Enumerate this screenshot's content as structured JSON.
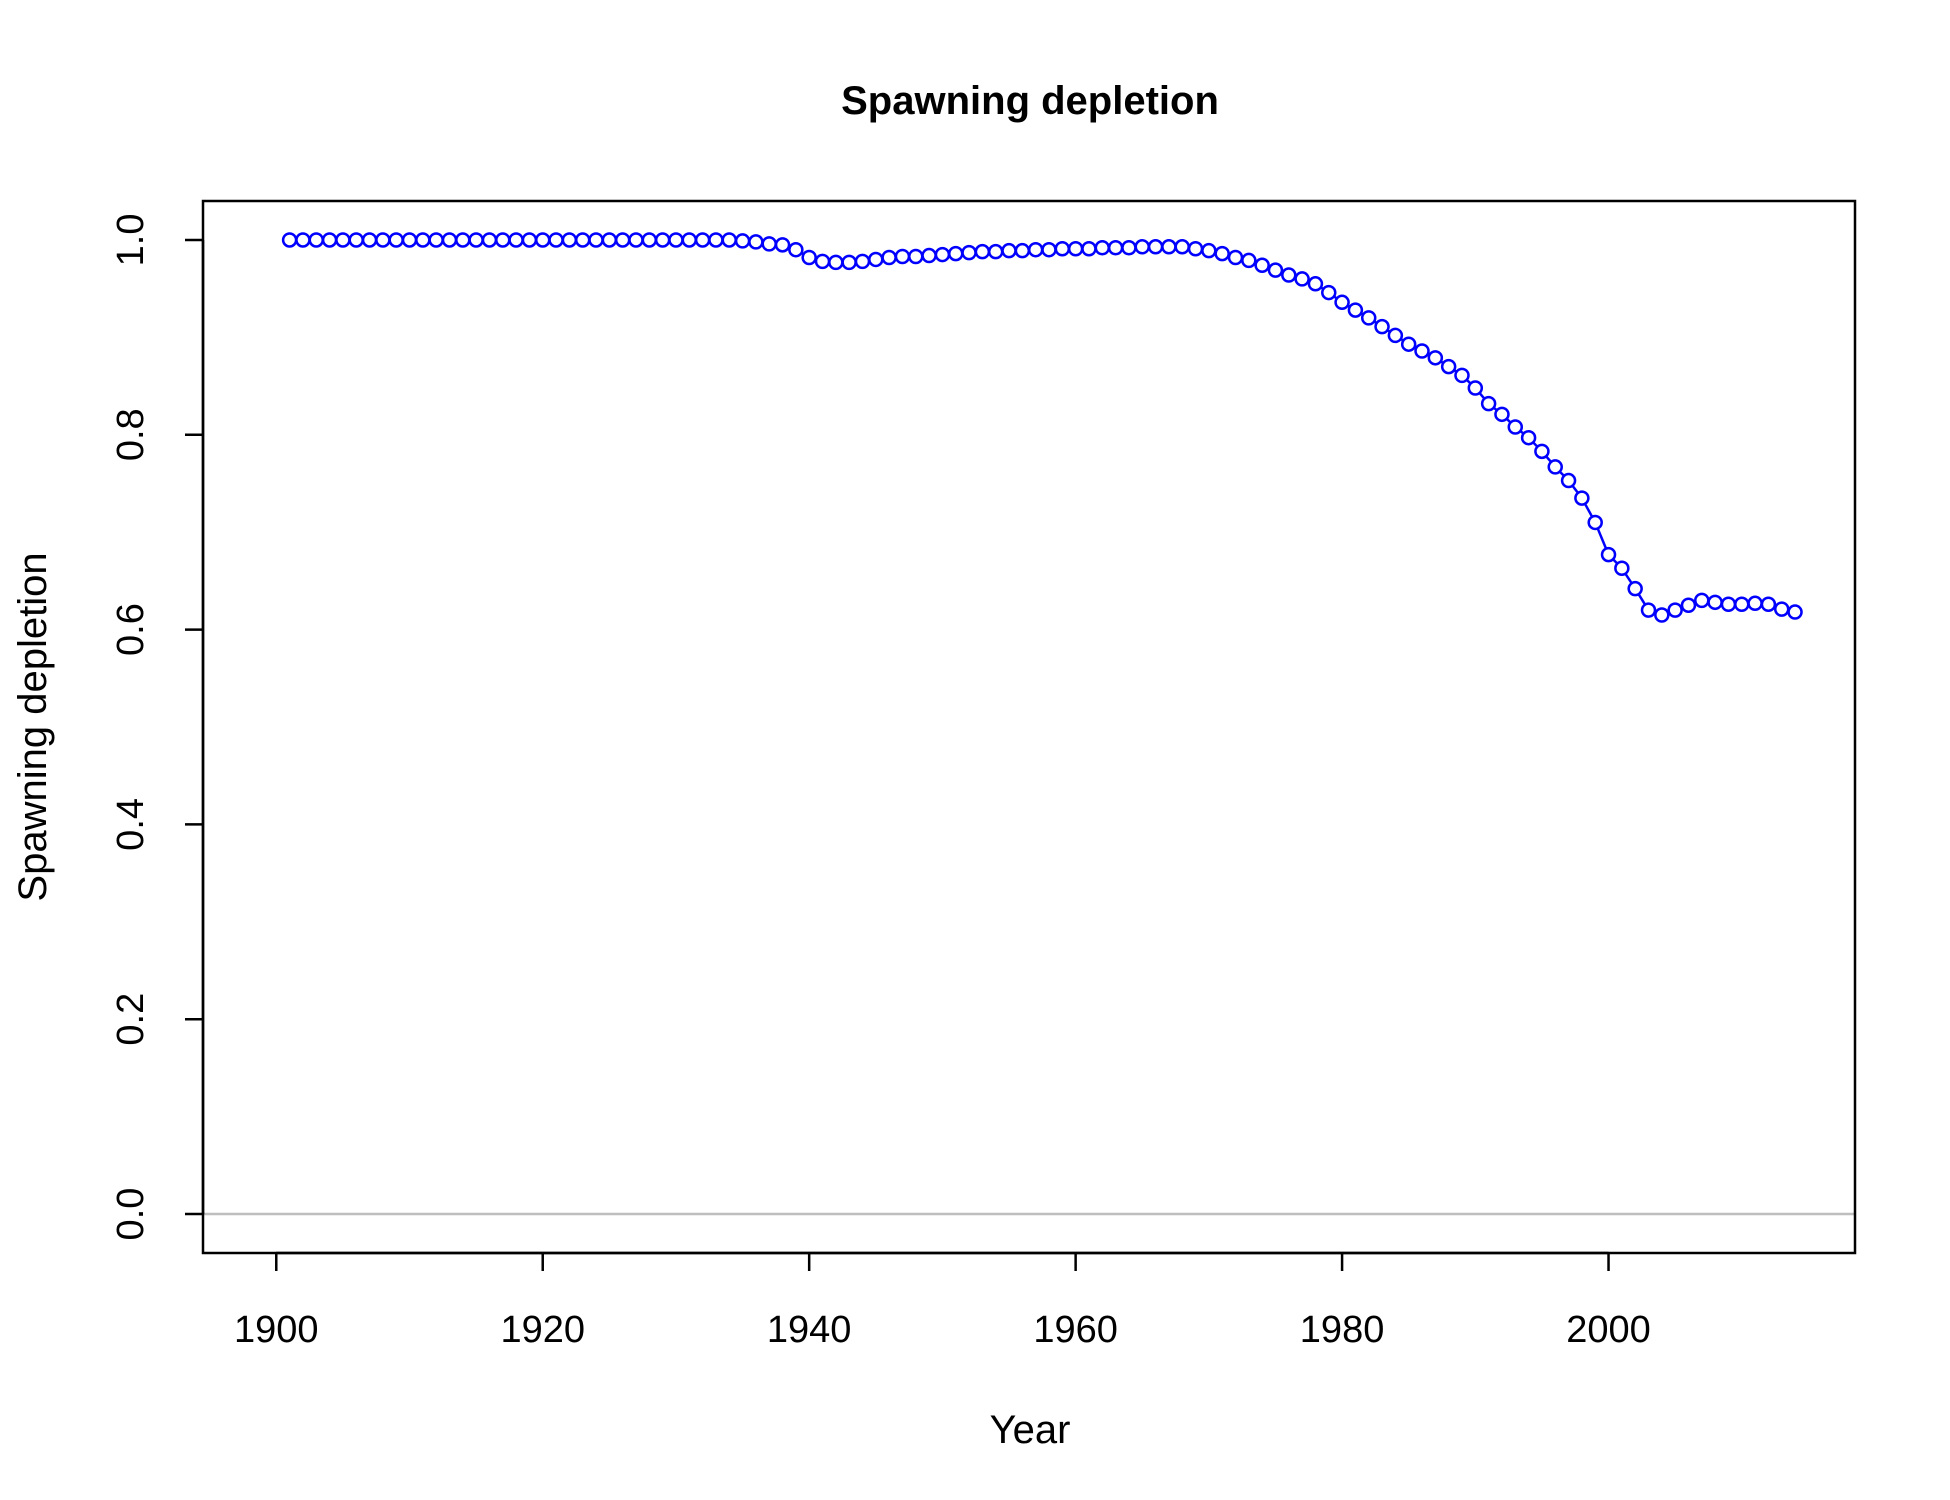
{
  "chart_data": {
    "type": "line",
    "title": "Spawning depletion",
    "xlabel": "Year",
    "ylabel": "Spawning depletion",
    "xlim": [
      1894.5,
      2018.5
    ],
    "ylim": [
      -0.04,
      1.04
    ],
    "x_ticks": [
      1900,
      1920,
      1940,
      1960,
      1980,
      2000
    ],
    "x_tick_labels": [
      "1900",
      "1920",
      "1940",
      "1960",
      "1980",
      "2000"
    ],
    "y_ticks": [
      0.0,
      0.2,
      0.4,
      0.6,
      0.8,
      1.0
    ],
    "y_tick_labels": [
      "0.0",
      "0.2",
      "0.4",
      "0.6",
      "0.8",
      "1.0"
    ],
    "reference_line": {
      "y": 0.0,
      "color": "#bebebe"
    },
    "grid": false,
    "series": [
      {
        "color": "#0000ff",
        "marker": "open-circle",
        "x": [
          1901,
          1902,
          1903,
          1904,
          1905,
          1906,
          1907,
          1908,
          1909,
          1910,
          1911,
          1912,
          1913,
          1914,
          1915,
          1916,
          1917,
          1918,
          1919,
          1920,
          1921,
          1922,
          1923,
          1924,
          1925,
          1926,
          1927,
          1928,
          1929,
          1930,
          1931,
          1932,
          1933,
          1934,
          1935,
          1936,
          1937,
          1938,
          1939,
          1940,
          1941,
          1942,
          1943,
          1944,
          1945,
          1946,
          1947,
          1948,
          1949,
          1950,
          1951,
          1952,
          1953,
          1954,
          1955,
          1956,
          1957,
          1958,
          1959,
          1960,
          1961,
          1962,
          1963,
          1964,
          1965,
          1966,
          1967,
          1968,
          1969,
          1970,
          1971,
          1972,
          1973,
          1974,
          1975,
          1976,
          1977,
          1978,
          1979,
          1980,
          1981,
          1982,
          1983,
          1984,
          1985,
          1986,
          1987,
          1988,
          1989,
          1990,
          1991,
          1992,
          1993,
          1994,
          1995,
          1996,
          1997,
          1998,
          1999,
          2000,
          2001,
          2002,
          2003,
          2004,
          2005,
          2006,
          2007,
          2008,
          2009,
          2010,
          2011,
          2012,
          2013,
          2014
        ],
        "y": [
          1.0,
          1.0,
          1.0,
          1.0,
          1.0,
          1.0,
          1.0,
          1.0,
          1.0,
          1.0,
          1.0,
          1.0,
          1.0,
          1.0,
          1.0,
          1.0,
          1.0,
          1.0,
          1.0,
          1.0,
          1.0,
          1.0,
          1.0,
          1.0,
          1.0,
          1.0,
          1.0,
          1.0,
          1.0,
          1.0,
          1.0,
          1.0,
          1.0,
          1.0,
          0.999,
          0.998,
          0.996,
          0.995,
          0.99,
          0.982,
          0.978,
          0.977,
          0.977,
          0.978,
          0.98,
          0.982,
          0.983,
          0.983,
          0.984,
          0.985,
          0.986,
          0.987,
          0.988,
          0.988,
          0.989,
          0.989,
          0.99,
          0.99,
          0.991,
          0.991,
          0.991,
          0.992,
          0.992,
          0.992,
          0.993,
          0.993,
          0.993,
          0.993,
          0.991,
          0.989,
          0.986,
          0.982,
          0.979,
          0.974,
          0.969,
          0.964,
          0.96,
          0.955,
          0.946,
          0.936,
          0.928,
          0.92,
          0.911,
          0.902,
          0.893,
          0.886,
          0.879,
          0.87,
          0.861,
          0.848,
          0.832,
          0.821,
          0.808,
          0.797,
          0.783,
          0.767,
          0.753,
          0.735,
          0.71,
          0.677,
          0.663,
          0.642,
          0.62,
          0.615,
          0.62,
          0.625,
          0.63,
          0.628,
          0.626,
          0.626,
          0.627,
          0.626,
          0.621,
          0.618
        ]
      }
    ]
  }
}
